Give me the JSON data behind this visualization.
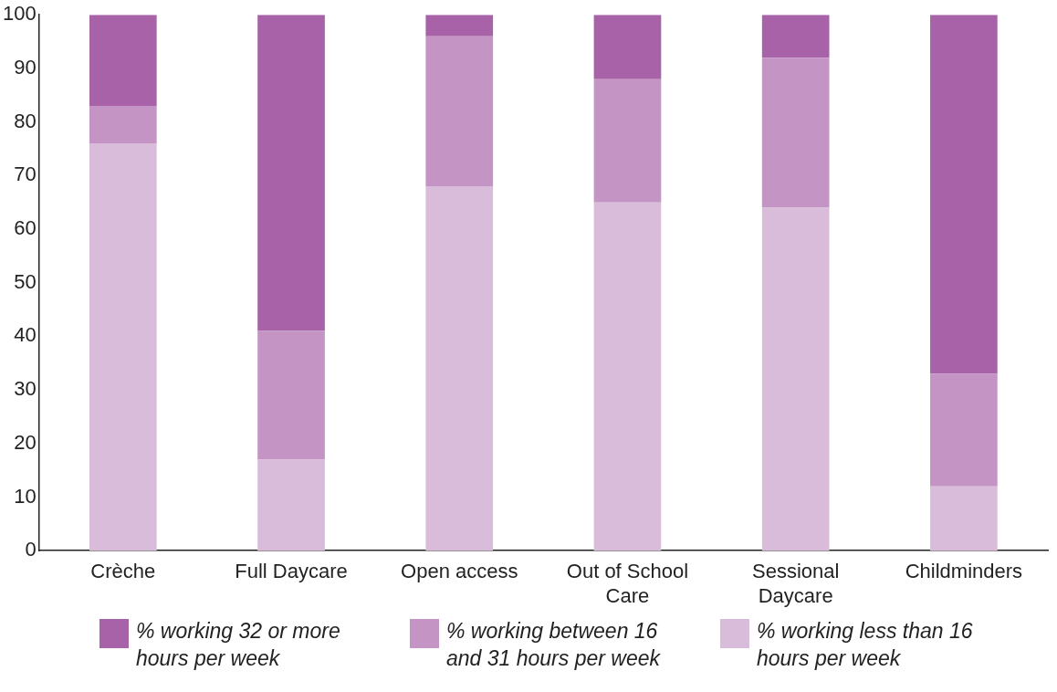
{
  "chart_data": {
    "type": "bar",
    "stacked": true,
    "categories": [
      "Crèche",
      "Full Daycare",
      "Open access",
      "Out of School Care",
      "Sessional Daycare",
      "Childminders"
    ],
    "series": [
      {
        "name": "% working less than 16 hours per week",
        "color": "#d9bcd9",
        "values": [
          76,
          17,
          68,
          65,
          64,
          12
        ]
      },
      {
        "name": "% working between 16 and 31 hours per week",
        "color": "#c495c4",
        "values": [
          7,
          24,
          28,
          23,
          28,
          21
        ]
      },
      {
        "name": "% working 32 or more hours per week",
        "color": "#a862a8",
        "values": [
          17,
          59,
          4,
          12,
          8,
          67
        ]
      }
    ],
    "ylim": [
      0,
      100
    ],
    "yticks": [
      0,
      10,
      20,
      30,
      40,
      50,
      60,
      70,
      80,
      90,
      100
    ],
    "grid": false,
    "legend": "bottom"
  }
}
